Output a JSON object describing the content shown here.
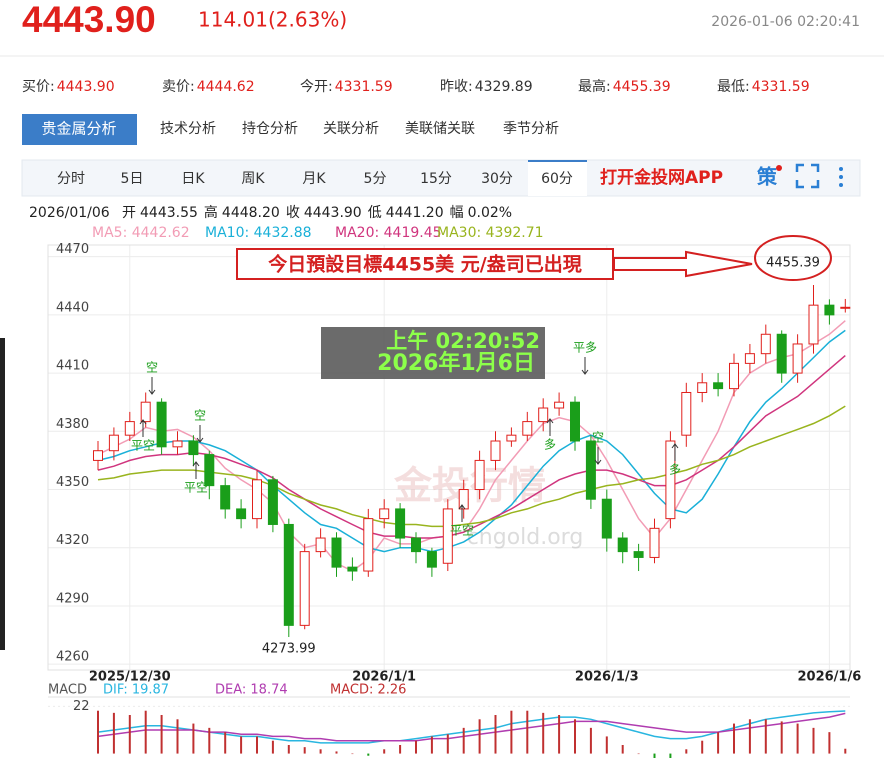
{
  "header": {
    "price": "4443.90",
    "change": "114.01(2.63%)",
    "time": "2026-01-06 02:20:41"
  },
  "quotes": [
    {
      "label": "买价:",
      "value": "4443.90",
      "color": "#e0201c"
    },
    {
      "label": "卖价:",
      "value": "4444.62",
      "color": "#e0201c"
    },
    {
      "label": "今开:",
      "value": "4331.59",
      "color": "#e0201c"
    },
    {
      "label": "昨收:",
      "value": "4329.89",
      "color": "#333333"
    },
    {
      "label": "最高:",
      "value": "4455.39",
      "color": "#e0201c"
    },
    {
      "label": "最低:",
      "value": "4331.59",
      "color": "#e0201c"
    }
  ],
  "tabs": [
    {
      "label": "贵金属分析",
      "active": true
    },
    {
      "label": "技术分析"
    },
    {
      "label": "持仓分析"
    },
    {
      "label": "关联分析"
    },
    {
      "label": "美联储关联"
    },
    {
      "label": "季节分析"
    }
  ],
  "periods": [
    {
      "label": "分时"
    },
    {
      "label": "5日"
    },
    {
      "label": "日K"
    },
    {
      "label": "周K"
    },
    {
      "label": "月K"
    },
    {
      "label": "5分"
    },
    {
      "label": "15分"
    },
    {
      "label": "30分"
    },
    {
      "label": "60分",
      "active": true
    }
  ],
  "app_link": "打开金投网APP",
  "strategy_icon": "策",
  "info": {
    "date": "2026/01/06",
    "items": [
      {
        "label": "开",
        "value": "4443.55"
      },
      {
        "label": "高",
        "value": "4448.20"
      },
      {
        "label": "收",
        "value": "4443.90"
      },
      {
        "label": "低",
        "value": "4441.20"
      },
      {
        "label": "幅",
        "value": "0.02%"
      }
    ]
  },
  "annotation": "今日預設目標4455美 元/盎司已出現",
  "overlay": {
    "time": "上午 02:20:52",
    "date": "2026年1月6日"
  },
  "watermark": {
    "name": "金投行情",
    "site": "cngold.org"
  },
  "signals": [
    "空",
    "平空",
    "空",
    "平空",
    "平空",
    "平多",
    "多",
    "空",
    "多"
  ],
  "chart_data": [
    {
      "type": "candlestick",
      "grid": true,
      "up_color": "#e0201c",
      "down_color": "#1a9e1a",
      "ylim": [
        4257,
        4476
      ],
      "yticks": [
        4260,
        4290,
        4320,
        4350,
        4380,
        4410,
        4440,
        4470
      ],
      "categories": [
        null,
        null,
        "2025/12/30",
        null,
        null,
        null,
        null,
        null,
        null,
        null,
        null,
        null,
        null,
        null,
        null,
        null,
        null,
        null,
        "2026/1/1",
        null,
        null,
        null,
        null,
        null,
        null,
        null,
        null,
        null,
        null,
        null,
        null,
        null,
        "2026/1/3",
        null,
        null,
        null,
        null,
        null,
        null,
        null,
        null,
        null,
        null,
        null,
        null,
        null,
        "2026/1/6",
        null
      ],
      "open": [
        4365,
        4370,
        4378,
        4385,
        4395,
        4372,
        4375,
        4368,
        4352,
        4340,
        4335,
        4355,
        4332,
        4280,
        4318,
        4325,
        4310,
        4308,
        4335,
        4340,
        4325,
        4318,
        4312,
        4340,
        4350,
        4365,
        4375,
        4378,
        4385,
        4392,
        4395,
        4375,
        4345,
        4325,
        4318,
        4315,
        4335,
        4378,
        4400,
        4405,
        4402,
        4415,
        4420,
        4430,
        4410,
        4425,
        4445,
        4443.55
      ],
      "high": [
        4375,
        4382,
        4390,
        4400,
        4397,
        4380,
        4378,
        4370,
        4356,
        4345,
        4360,
        4357,
        4335,
        4322,
        4330,
        4328,
        4315,
        4340,
        4345,
        4343,
        4328,
        4320,
        4345,
        4355,
        4370,
        4380,
        4382,
        4390,
        4397,
        4400,
        4398,
        4378,
        4350,
        4328,
        4322,
        4335,
        4380,
        4405,
        4410,
        4410,
        4420,
        4425,
        4435,
        4432,
        4430,
        4455.39,
        4448,
        4448.2
      ],
      "low": [
        4360,
        4365,
        4375,
        4382,
        4368,
        4368,
        4362,
        4345,
        4335,
        4330,
        4330,
        4328,
        4273.99,
        4278,
        4315,
        4305,
        4303,
        4305,
        4330,
        4320,
        4312,
        4305,
        4308,
        4335,
        4345,
        4360,
        4372,
        4375,
        4380,
        4388,
        4370,
        4340,
        4318,
        4312,
        4308,
        4312,
        4330,
        4372,
        4395,
        4398,
        4398,
        4410,
        4415,
        4405,
        4405,
        4420,
        4435,
        4441.2
      ],
      "close": [
        4370,
        4378,
        4385,
        4395,
        4372,
        4375,
        4368,
        4352,
        4340,
        4335,
        4355,
        4332,
        4280,
        4318,
        4325,
        4310,
        4308,
        4335,
        4340,
        4325,
        4318,
        4310,
        4340,
        4350,
        4365,
        4375,
        4378,
        4385,
        4392,
        4395,
        4375,
        4345,
        4325,
        4318,
        4315,
        4330,
        4375,
        4400,
        4405,
        4402,
        4415,
        4420,
        4430,
        4410,
        4425,
        4445,
        4440,
        4443.9
      ],
      "series": [
        {
          "name": "MA5: 4442.62",
          "color": "#f29cb5",
          "values": [
            4368,
            4372,
            4376,
            4382,
            4380,
            4381,
            4377,
            4370,
            4361,
            4355,
            4350,
            4343,
            4328,
            4320,
            4322,
            4312,
            4308,
            4314,
            4325,
            4322,
            4322,
            4325,
            4326,
            4328,
            4340,
            4355,
            4365,
            4375,
            4384,
            4387,
            4385,
            4378,
            4365,
            4350,
            4335,
            4325,
            4335,
            4350,
            4365,
            4380,
            4400,
            4410,
            4415,
            4418,
            4420,
            4425,
            4430,
            4437
          ]
        },
        {
          "name": "MA10: 4432.88",
          "color": "#1ab0d8",
          "values": [
            4365,
            4367,
            4370,
            4372,
            4374,
            4375,
            4375,
            4373,
            4370,
            4365,
            4360,
            4352,
            4345,
            4338,
            4332,
            4330,
            4325,
            4320,
            4318,
            4320,
            4320,
            4318,
            4320,
            4323,
            4328,
            4335,
            4342,
            4352,
            4362,
            4370,
            4375,
            4378,
            4375,
            4368,
            4358,
            4348,
            4340,
            4338,
            4345,
            4358,
            4372,
            4385,
            4395,
            4402,
            4410,
            4418,
            4426,
            4432
          ]
        },
        {
          "name": "MA20: 4419.45",
          "color": "#d0357e",
          "values": [
            4360,
            4362,
            4365,
            4367,
            4368,
            4368,
            4369,
            4368,
            4366,
            4363,
            4360,
            4356,
            4350,
            4345,
            4340,
            4336,
            4332,
            4328,
            4326,
            4326,
            4325,
            4325,
            4326,
            4328,
            4332,
            4336,
            4340,
            4345,
            4350,
            4355,
            4358,
            4360,
            4360,
            4358,
            4355,
            4352,
            4352,
            4355,
            4360,
            4365,
            4372,
            4380,
            4388,
            4393,
            4398,
            4405,
            4412,
            4419
          ]
        },
        {
          "name": "MA30: 4392.71",
          "color": "#99b41e",
          "values": [
            4355,
            4356,
            4358,
            4359,
            4360,
            4360,
            4360,
            4359,
            4358,
            4357,
            4355,
            4352,
            4348,
            4345,
            4342,
            4340,
            4337,
            4335,
            4333,
            4332,
            4332,
            4331,
            4331,
            4332,
            4333,
            4335,
            4338,
            4340,
            4343,
            4345,
            4348,
            4350,
            4352,
            4353,
            4355,
            4356,
            4358,
            4360,
            4363,
            4365,
            4368,
            4372,
            4375,
            4378,
            4381,
            4384,
            4388,
            4393
          ]
        }
      ]
    },
    {
      "type": "macd",
      "title": "MACD",
      "ylim": [
        -3,
        25
      ],
      "yticks": [
        22
      ],
      "series": [
        {
          "name": "DIF: 19.87",
          "color": "#29b6e0",
          "values": [
            10,
            11,
            12,
            13,
            13,
            12,
            11,
            10,
            9,
            8,
            8,
            7,
            6,
            6,
            5,
            5,
            5,
            5,
            6,
            6,
            7,
            8,
            9,
            10,
            11,
            12,
            14,
            15,
            16,
            17,
            17,
            16,
            14,
            12,
            10,
            8,
            7,
            7,
            8,
            10,
            12,
            14,
            16,
            17,
            18,
            19,
            19.5,
            19.87
          ]
        },
        {
          "name": "DEA: 18.74",
          "color": "#b03cb0",
          "values": [
            8,
            9,
            10,
            11,
            11,
            11,
            11,
            10,
            10,
            9,
            9,
            8,
            8,
            7,
            7,
            6,
            6,
            6,
            6,
            6,
            6,
            7,
            7,
            8,
            9,
            10,
            11,
            12,
            13,
            14,
            15,
            15,
            15,
            14,
            13,
            12,
            11,
            10,
            10,
            10,
            11,
            12,
            13,
            14,
            15,
            16,
            17,
            18.74
          ]
        },
        {
          "name": "MACD: 2.26",
          "color": "#c03030",
          "type": "bar",
          "values": [
            20,
            19,
            18,
            20,
            18,
            16,
            14,
            12,
            10,
            8,
            8,
            6,
            4,
            3,
            2,
            1,
            0,
            -1,
            2,
            4,
            6,
            8,
            9,
            12,
            16,
            18,
            20,
            20,
            19,
            18,
            16,
            12,
            8,
            4,
            0,
            -3,
            -4,
            2,
            6,
            10,
            14,
            16,
            16,
            15,
            14,
            12,
            10,
            2.26
          ]
        }
      ]
    }
  ]
}
